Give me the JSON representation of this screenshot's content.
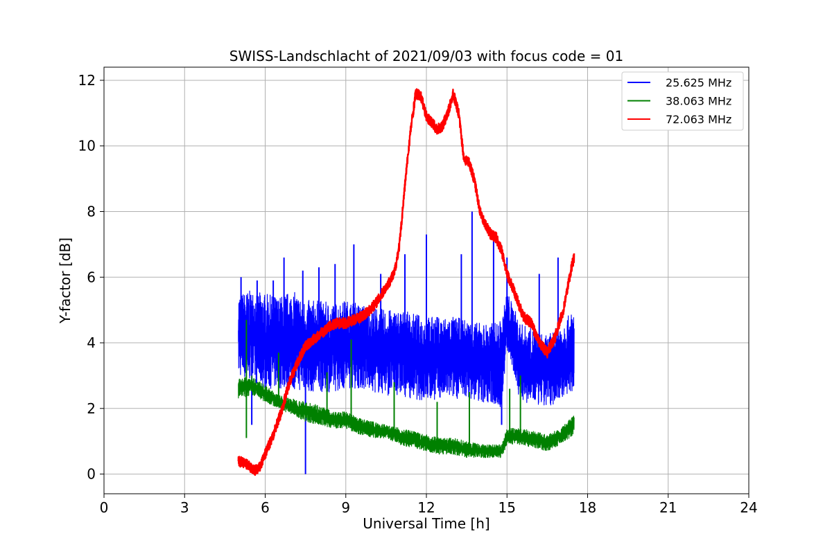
{
  "chart_data": {
    "type": "line",
    "title": "SWISS-Landschlacht of 2021/09/03 with focus code = 01",
    "xlabel": "Universal Time [h]",
    "ylabel": "Y-factor [dB]",
    "xlim": [
      0,
      24
    ],
    "ylim": [
      -0.6,
      12.4
    ],
    "xticks": [
      0,
      3,
      6,
      9,
      12,
      15,
      18,
      21,
      24
    ],
    "yticks": [
      0,
      2,
      4,
      6,
      8,
      10,
      12
    ],
    "grid": true,
    "legend_position": "top-right",
    "series": [
      {
        "name": "25.625 MHz",
        "color": "#0000ff",
        "x": [
          5.0,
          5.5,
          6.0,
          6.5,
          7.0,
          7.5,
          8.0,
          8.5,
          9.0,
          9.5,
          10.0,
          10.5,
          11.0,
          11.5,
          12.0,
          12.5,
          13.0,
          13.5,
          14.0,
          14.5,
          14.8,
          15.0,
          15.5,
          16.0,
          16.5,
          17.0,
          17.5
        ],
        "low": [
          3.0,
          2.8,
          2.6,
          2.6,
          2.6,
          2.5,
          2.5,
          2.5,
          2.6,
          2.6,
          2.5,
          2.4,
          2.4,
          2.3,
          2.2,
          2.3,
          2.3,
          2.3,
          2.2,
          2.1,
          2.0,
          3.8,
          2.2,
          2.1,
          2.0,
          2.3,
          2.5
        ],
        "high": [
          5.5,
          5.6,
          5.5,
          5.4,
          5.6,
          5.3,
          5.3,
          5.2,
          5.3,
          5.2,
          5.1,
          5.0,
          5.0,
          4.9,
          4.8,
          4.8,
          4.8,
          4.7,
          4.6,
          4.6,
          4.7,
          5.6,
          4.6,
          4.4,
          4.2,
          4.6,
          5.0
        ],
        "spikes": [
          [
            5.1,
            6.0
          ],
          [
            5.7,
            5.9
          ],
          [
            6.3,
            5.9
          ],
          [
            6.7,
            6.6
          ],
          [
            7.4,
            6.2
          ],
          [
            8.0,
            6.3
          ],
          [
            8.6,
            6.4
          ],
          [
            9.3,
            7.0
          ],
          [
            10.3,
            6.1
          ],
          [
            11.2,
            6.7
          ],
          [
            12.0,
            7.3
          ],
          [
            13.3,
            6.7
          ],
          [
            13.7,
            8.0
          ],
          [
            14.5,
            7.2
          ],
          [
            15.0,
            6.6
          ],
          [
            16.2,
            6.1
          ],
          [
            16.9,
            6.6
          ],
          [
            7.5,
            0.0
          ],
          [
            5.5,
            1.5
          ],
          [
            14.8,
            1.5
          ]
        ]
      },
      {
        "name": "38.063 MHz",
        "color": "#008000",
        "x": [
          5.0,
          5.5,
          6.0,
          6.5,
          7.0,
          7.5,
          8.0,
          8.5,
          9.0,
          9.5,
          10.0,
          10.5,
          11.0,
          11.5,
          12.0,
          12.5,
          13.0,
          13.5,
          14.0,
          14.5,
          14.8,
          15.0,
          15.5,
          16.0,
          16.5,
          17.0,
          17.5
        ],
        "low": [
          2.3,
          2.4,
          2.2,
          2.0,
          1.8,
          1.6,
          1.5,
          1.4,
          1.4,
          1.2,
          1.1,
          1.1,
          0.9,
          0.8,
          0.7,
          0.6,
          0.6,
          0.5,
          0.5,
          0.5,
          0.5,
          0.9,
          0.9,
          0.8,
          0.7,
          0.9,
          1.2
        ],
        "high": [
          2.9,
          3.0,
          2.7,
          2.4,
          2.3,
          2.2,
          2.1,
          1.9,
          1.9,
          1.7,
          1.6,
          1.5,
          1.4,
          1.3,
          1.2,
          1.1,
          1.1,
          1.0,
          0.9,
          0.9,
          0.9,
          1.4,
          1.4,
          1.3,
          1.2,
          1.4,
          1.8
        ],
        "spikes": [
          [
            5.3,
            4.7
          ],
          [
            6.5,
            3.7
          ],
          [
            8.3,
            3.1
          ],
          [
            9.2,
            4.1
          ],
          [
            10.8,
            2.8
          ],
          [
            12.4,
            2.2
          ],
          [
            13.6,
            2.5
          ],
          [
            15.1,
            2.6
          ],
          [
            15.5,
            3.0
          ],
          [
            5.3,
            1.1
          ]
        ]
      },
      {
        "name": "72.063 MHz",
        "color": "#ff0000",
        "x": [
          5.0,
          5.3,
          5.6,
          5.8,
          6.0,
          6.3,
          6.6,
          6.9,
          7.2,
          7.5,
          7.8,
          8.1,
          8.4,
          8.7,
          9.0,
          9.3,
          9.6,
          9.9,
          10.2,
          10.5,
          10.8,
          11.0,
          11.2,
          11.4,
          11.6,
          11.8,
          12.0,
          12.2,
          12.4,
          12.6,
          12.8,
          13.0,
          13.2,
          13.4,
          13.6,
          13.8,
          14.0,
          14.2,
          14.4,
          14.6,
          14.8,
          15.0,
          15.3,
          15.6,
          15.9,
          16.2,
          16.5,
          16.8,
          17.1,
          17.4,
          17.5
        ],
        "y": [
          0.4,
          0.3,
          0.1,
          0.2,
          0.6,
          1.2,
          1.9,
          2.8,
          3.4,
          3.9,
          4.1,
          4.3,
          4.5,
          4.6,
          4.6,
          4.7,
          4.8,
          5.0,
          5.3,
          5.7,
          6.1,
          7.0,
          8.8,
          10.4,
          11.6,
          11.5,
          10.9,
          10.7,
          10.5,
          10.6,
          11.0,
          11.6,
          11.0,
          9.6,
          9.5,
          8.9,
          8.0,
          7.6,
          7.3,
          7.2,
          6.8,
          6.1,
          5.5,
          4.8,
          4.6,
          4.0,
          3.7,
          4.2,
          5.0,
          6.3,
          6.6
        ]
      }
    ]
  }
}
